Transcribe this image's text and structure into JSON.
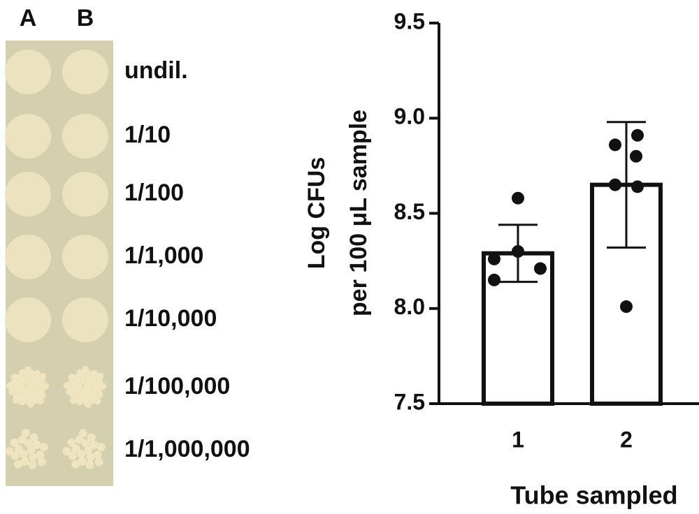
{
  "plate": {
    "columns": [
      "A",
      "B"
    ],
    "dilutions": [
      "undil.",
      "1/10",
      "1/100",
      "1/1,000",
      "1/10,000",
      "1/100,000",
      "1/1,000,000"
    ]
  },
  "chart_data": {
    "type": "bar",
    "categories": [
      "1",
      "2"
    ],
    "values": [
      8.29,
      8.65
    ],
    "errors": [
      0.15,
      0.33
    ],
    "points": [
      [
        8.58,
        8.26,
        8.3,
        8.15,
        8.21
      ],
      [
        8.91,
        8.86,
        8.8,
        8.65,
        8.64,
        8.01
      ]
    ],
    "color": "#ffffff",
    "x_label": "Tube sampled",
    "y_label": [
      "Log CFUs",
      "per 100 μL sample"
    ],
    "ylim": [
      7.5,
      9.5
    ],
    "yticks": [
      7.5,
      {
        "value": 8,
        "label": "8.0"
      },
      8.5,
      {
        "value": 9,
        "label": "9.0"
      },
      9.5
    ]
  }
}
